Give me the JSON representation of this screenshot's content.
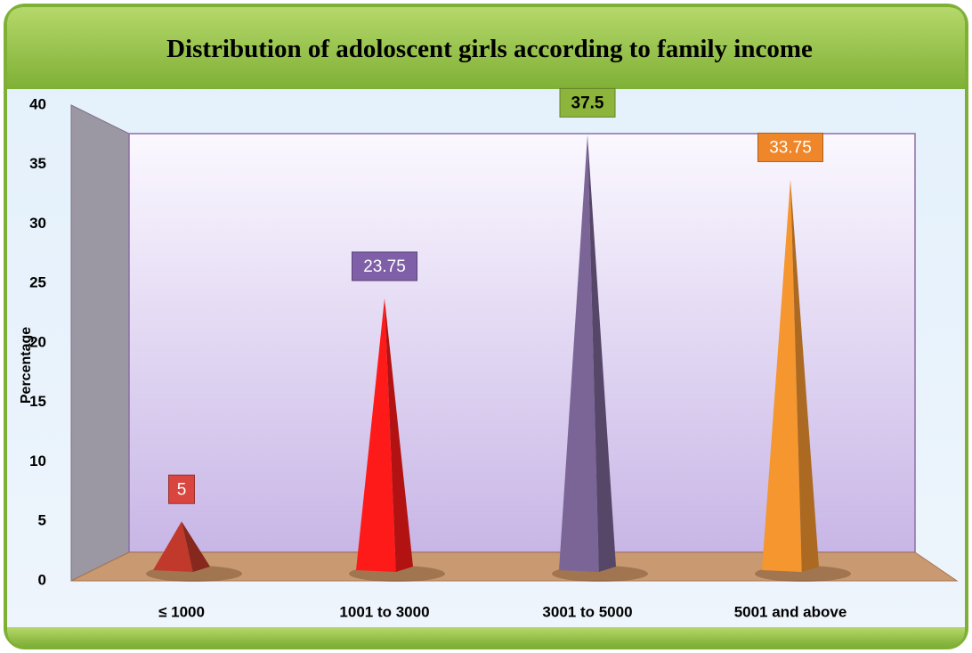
{
  "chart_data": {
    "type": "pyramid",
    "title": "Distribution of adoloscent girls according to family income",
    "y_label": "Percentage",
    "categories": [
      "≤ 1000",
      "1001 to 3000",
      "3001 to 5000",
      "5001 and above"
    ],
    "values": [
      5,
      23.75,
      37.5,
      33.75
    ],
    "colors": [
      "#c0392b",
      "#ff1a1a",
      "#7b6596",
      "#f5962f"
    ],
    "label_colors": [
      "#d9453f",
      "#7f5fa8",
      "#8db53c",
      "#f0862a"
    ],
    "ylim": [
      0,
      40
    ],
    "yticks": [
      0,
      5,
      10,
      15,
      20,
      25,
      30,
      35,
      40
    ],
    "grid": false
  }
}
